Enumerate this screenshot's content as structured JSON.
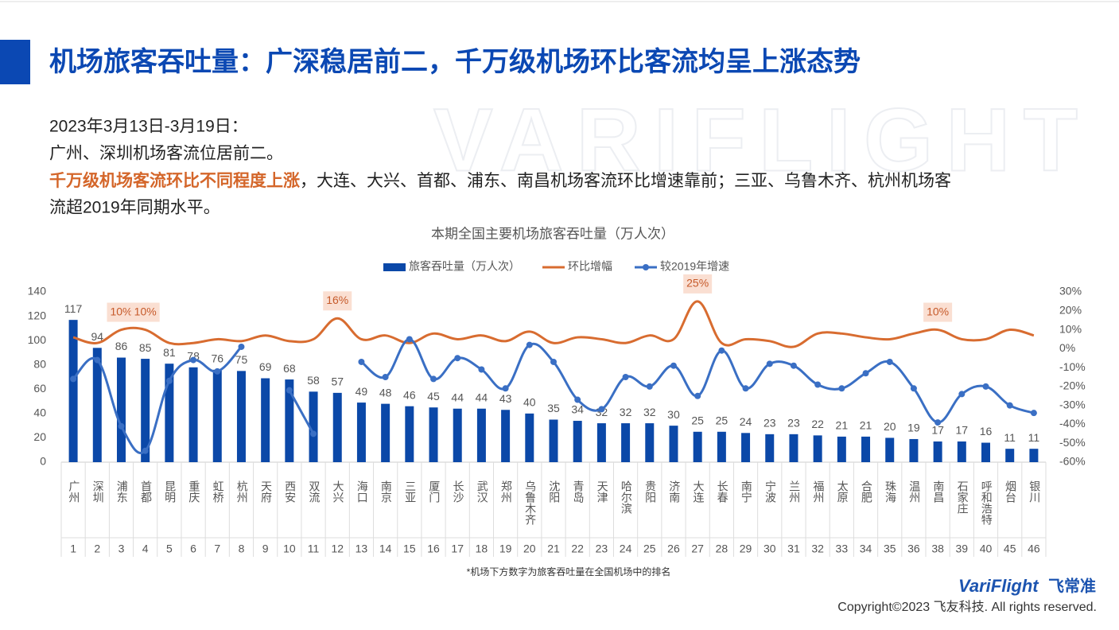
{
  "header": {
    "title": "机场旅客吞吐量：广深稳居前二，千万级机场环比客流均呈上涨态势"
  },
  "body": {
    "line1": "2023年3月13日-3月19日：",
    "line2": "广州、深圳机场客流位居前二。",
    "line3_highlight": "千万级机场客流环比不同程度上涨",
    "line3_rest": "，大连、大兴、首都、浦东、南昌机场客流环比增速靠前；三亚、乌鲁木齐、杭州机场客",
    "line4": "流超2019年同期水平。"
  },
  "watermark": "VARIFLIGHT",
  "chart_data": {
    "type": "bar",
    "title": "本期全国主要机场旅客吞吐量（万人次）",
    "categories": [
      "广州",
      "深圳",
      "浦东",
      "首都",
      "昆明",
      "重庆",
      "虹桥",
      "杭州",
      "天府",
      "西安",
      "双流",
      "大兴",
      "海口",
      "南京",
      "三亚",
      "厦门",
      "长沙",
      "武汉",
      "郑州",
      "乌鲁木齐",
      "沈阳",
      "青岛",
      "天津",
      "哈尔滨",
      "贵阳",
      "济南",
      "大连",
      "长春",
      "南宁",
      "宁波",
      "兰州",
      "福州",
      "太原",
      "合肥",
      "珠海",
      "温州",
      "南昌",
      "石家庄",
      "呼和浩特",
      "烟台",
      "银川"
    ],
    "ranks": [
      1,
      2,
      3,
      4,
      5,
      6,
      7,
      8,
      9,
      10,
      11,
      12,
      13,
      14,
      15,
      16,
      17,
      18,
      19,
      20,
      21,
      22,
      23,
      24,
      25,
      26,
      27,
      28,
      29,
      30,
      31,
      32,
      33,
      34,
      35,
      36,
      38,
      39,
      40,
      45,
      46
    ],
    "series": [
      {
        "name": "旅客吞吐量（万人次）",
        "type": "bar",
        "color": "#0b48a8",
        "values": [
          117,
          94,
          86,
          85,
          81,
          78,
          76,
          75,
          69,
          68,
          58,
          57,
          49,
          48,
          46,
          45,
          44,
          44,
          43,
          40,
          35,
          34,
          32,
          32,
          32,
          30,
          25,
          25,
          24,
          23,
          23,
          22,
          21,
          21,
          20,
          19,
          17,
          17,
          16,
          11,
          11
        ]
      },
      {
        "name": "环比增幅",
        "type": "line",
        "axis": "y2",
        "color": "#d86c30",
        "values": [
          6,
          3,
          10,
          10,
          3,
          3,
          5,
          4,
          7,
          4,
          5,
          16,
          5,
          7,
          3,
          8,
          5,
          7,
          4,
          9,
          3,
          6,
          5,
          3,
          7,
          5,
          25,
          3,
          5,
          4,
          1,
          8,
          8,
          6,
          5,
          8,
          10,
          5,
          5,
          10,
          7
        ],
        "value_labels": [
          null,
          null,
          "10%",
          "10%",
          null,
          null,
          null,
          null,
          null,
          null,
          null,
          "16%",
          null,
          null,
          null,
          null,
          null,
          null,
          null,
          null,
          null,
          null,
          null,
          null,
          null,
          null,
          "25%",
          null,
          null,
          null,
          null,
          null,
          null,
          null,
          null,
          null,
          "10%",
          null,
          null,
          null,
          null
        ]
      },
      {
        "name": "较2019年增速",
        "type": "line",
        "axis": "y2",
        "color": "#3a6fc4",
        "values": [
          -16,
          -6,
          -41,
          -54,
          -17,
          -6,
          -12,
          1,
          null,
          -22,
          -45,
          null,
          -7,
          -15,
          5,
          -16,
          -5,
          -11,
          -21,
          2,
          -7,
          -27,
          -32,
          -15,
          -20,
          -9,
          -25,
          -1,
          -21,
          -8,
          -9,
          -19,
          -21,
          -13,
          -7,
          -21,
          -39,
          -24,
          -20,
          -30,
          -34
        ]
      }
    ],
    "ylim": [
      0,
      140
    ],
    "yticks": [
      0,
      20,
      40,
      60,
      80,
      100,
      120,
      140
    ],
    "y2lim": [
      -60,
      30
    ],
    "y2ticks": [
      {
        "value": -60,
        "label": "-60%"
      },
      {
        "value": -50,
        "label": "-50%"
      },
      {
        "value": -40,
        "label": "-40%"
      },
      {
        "value": -30,
        "label": "-30%"
      },
      {
        "value": -20,
        "label": "-20%"
      },
      {
        "value": -10,
        "label": "-10%"
      },
      {
        "value": 0,
        "label": "0%"
      },
      {
        "value": 10,
        "label": "10%"
      },
      {
        "value": 20,
        "label": "20%"
      },
      {
        "value": 30,
        "label": "30%"
      }
    ],
    "legend": "top",
    "footnote": "*机场下方数字为旅客吞吐量在全国机场中的排名"
  },
  "footer": {
    "logo": "VariFlight",
    "logo_cn": "飞常准",
    "copyright": "Copyright©2023 飞友科技. All rights reserved."
  }
}
